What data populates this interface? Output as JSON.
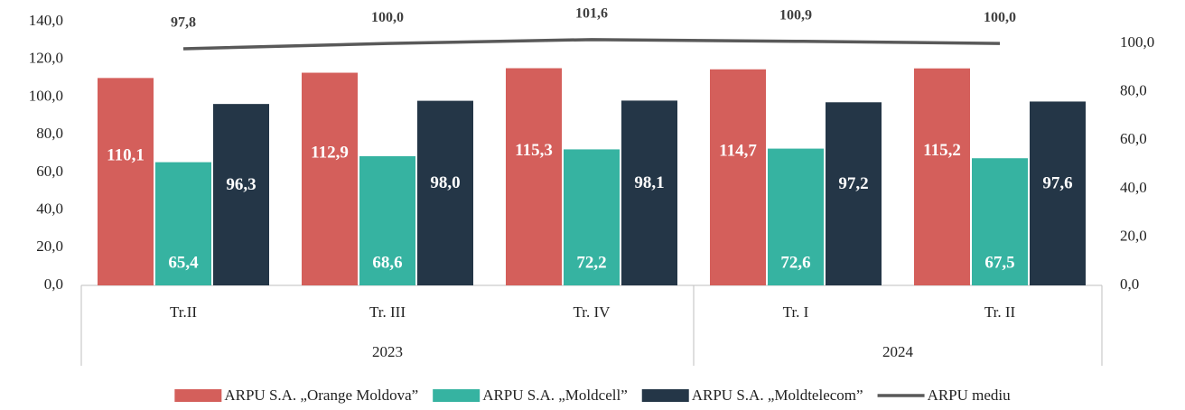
{
  "chart_data": {
    "type": "bar_line",
    "categories": [
      "Tr.II",
      "Tr. III",
      "Tr. IV",
      "Tr. I",
      "Tr. II"
    ],
    "groups": [
      {
        "label": "2023",
        "count": 3
      },
      {
        "label": "2024",
        "count": 2
      }
    ],
    "series": [
      {
        "name": "ARPU S.A. „Orange Moldova”",
        "color": "#d45f5b",
        "values": [
          110.1,
          112.9,
          115.3,
          114.7,
          115.2
        ],
        "value_labels": [
          "110,1",
          "112,9",
          "115,3",
          "114,7",
          "115,2"
        ]
      },
      {
        "name": "ARPU S.A. „Moldcell”",
        "color": "#36b3a1",
        "values": [
          65.4,
          68.6,
          72.2,
          72.6,
          67.5
        ],
        "value_labels": [
          "65,4",
          "68,6",
          "72,2",
          "72,6",
          "67,5"
        ]
      },
      {
        "name": "ARPU S.A. „Moldtelecom”",
        "color": "#243647",
        "values": [
          96.3,
          98.0,
          98.1,
          97.2,
          97.6
        ],
        "value_labels": [
          "96,3",
          "98,0",
          "98,1",
          "97,2",
          "97,6"
        ]
      },
      {
        "name": "ARPU mediu",
        "color": "#595959",
        "axis": "y2",
        "type": "line",
        "values": [
          97.8,
          100.0,
          101.6,
          100.9,
          100.0
        ],
        "value_labels": [
          "97,8",
          "100,0",
          "101,6",
          "100,9",
          "100,0"
        ]
      }
    ],
    "ylim": [
      0,
      140
    ],
    "yticks": [
      {
        "value": 0,
        "label": "0,0"
      },
      {
        "value": 20,
        "label": "20,0"
      },
      {
        "value": 40,
        "label": "40,0"
      },
      {
        "value": 60,
        "label": "60,0"
      },
      {
        "value": 80,
        "label": "80,0"
      },
      {
        "value": 100,
        "label": "100,0"
      },
      {
        "value": 120,
        "label": "120,0"
      },
      {
        "value": 140,
        "label": "140,0"
      }
    ],
    "y2lim": [
      0,
      109
    ],
    "y2ticks": [
      {
        "value": 0,
        "label": "0,0"
      },
      {
        "value": 20,
        "label": "20,0"
      },
      {
        "value": 40,
        "label": "40,0"
      },
      {
        "value": 60,
        "label": "60,0"
      },
      {
        "value": 80,
        "label": "80,0"
      },
      {
        "value": 100,
        "label": "100,0"
      }
    ]
  }
}
